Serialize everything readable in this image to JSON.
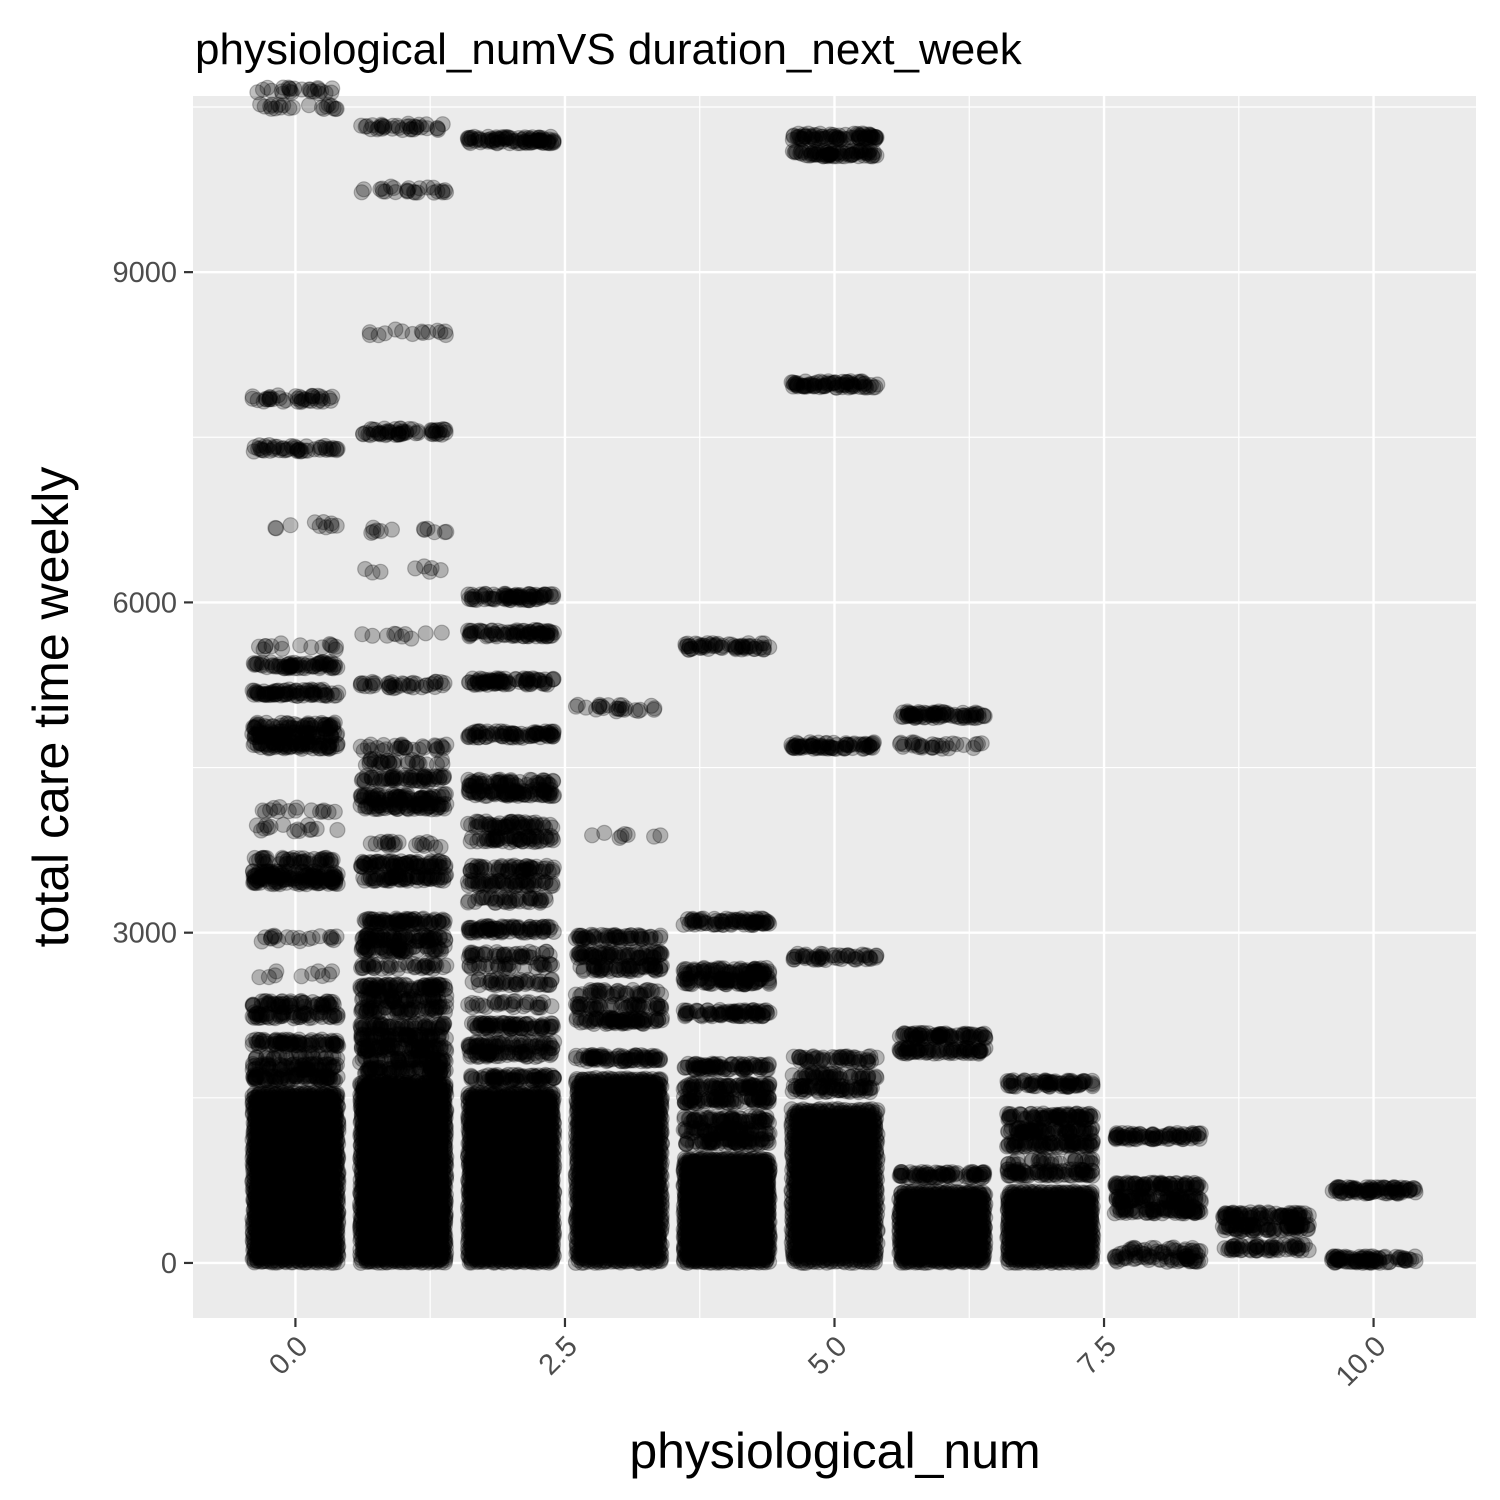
{
  "chart_data": {
    "type": "scatter",
    "title": "physiological_numVS duration_next_week",
    "xlabel": "physiological_num",
    "ylabel": "total care time weekly",
    "xlim": [
      -0.95,
      10.95
    ],
    "ylim": [
      -500,
      10600
    ],
    "x_ticks": [
      0,
      2.5,
      5,
      7.5,
      10
    ],
    "x_tick_labels": [
      "0.0",
      "2.5",
      "5.0",
      "7.5",
      "10.0"
    ],
    "y_ticks": [
      0,
      3000,
      6000,
      9000
    ],
    "y_tick_labels": [
      "0",
      "3000",
      "6000",
      "9000"
    ],
    "jitter_width": 0.4,
    "point_alpha": 0.25,
    "point_color": "#000000",
    "panel_color": "#ebebeb",
    "grid_color": "#ffffff",
    "grid": true,
    "legend": "none",
    "groups": [
      {
        "x": 0,
        "dense_max": 1550,
        "dense_n": 2500,
        "levels": [
          {
            "y": 1680,
            "n": 80
          },
          {
            "y": 1780,
            "n": 70
          },
          {
            "y": 1880,
            "n": 30
          },
          {
            "y": 2000,
            "n": 80
          },
          {
            "y": 2250,
            "n": 60
          },
          {
            "y": 2350,
            "n": 60
          },
          {
            "y": 2620,
            "n": 10
          },
          {
            "y": 2950,
            "n": 20
          },
          {
            "y": 3470,
            "n": 80
          },
          {
            "y": 3530,
            "n": 80
          },
          {
            "y": 3650,
            "n": 50
          },
          {
            "y": 3950,
            "n": 15
          },
          {
            "y": 4120,
            "n": 15
          },
          {
            "y": 4700,
            "n": 80
          },
          {
            "y": 4800,
            "n": 80
          },
          {
            "y": 4880,
            "n": 60
          },
          {
            "y": 5180,
            "n": 80
          },
          {
            "y": 5430,
            "n": 70
          },
          {
            "y": 5600,
            "n": 15
          },
          {
            "y": 6700,
            "n": 10
          },
          {
            "y": 7400,
            "n": 50
          },
          {
            "y": 7850,
            "n": 40
          },
          {
            "y": 10500,
            "n": 20
          },
          {
            "y": 10650,
            "n": 25
          }
        ]
      },
      {
        "x": 1,
        "dense_max": 1650,
        "dense_n": 2800,
        "levels": [
          {
            "y": 1750,
            "n": 80
          },
          {
            "y": 1850,
            "n": 60
          },
          {
            "y": 1950,
            "n": 80
          },
          {
            "y": 2050,
            "n": 70
          },
          {
            "y": 2150,
            "n": 60
          },
          {
            "y": 2300,
            "n": 60
          },
          {
            "y": 2400,
            "n": 60
          },
          {
            "y": 2500,
            "n": 80
          },
          {
            "y": 2700,
            "n": 40
          },
          {
            "y": 2850,
            "n": 60
          },
          {
            "y": 2950,
            "n": 80
          },
          {
            "y": 3100,
            "n": 80
          },
          {
            "y": 3500,
            "n": 70
          },
          {
            "y": 3620,
            "n": 80
          },
          {
            "y": 3800,
            "n": 20
          },
          {
            "y": 4150,
            "n": 70
          },
          {
            "y": 4230,
            "n": 70
          },
          {
            "y": 4400,
            "n": 60
          },
          {
            "y": 4550,
            "n": 30
          },
          {
            "y": 4680,
            "n": 30
          },
          {
            "y": 5250,
            "n": 40
          },
          {
            "y": 5700,
            "n": 10
          },
          {
            "y": 6300,
            "n": 8
          },
          {
            "y": 6650,
            "n": 12
          },
          {
            "y": 7550,
            "n": 60
          },
          {
            "y": 8450,
            "n": 14
          },
          {
            "y": 9750,
            "n": 25
          },
          {
            "y": 10320,
            "n": 35
          }
        ]
      },
      {
        "x": 2,
        "dense_max": 1550,
        "dense_n": 2500,
        "levels": [
          {
            "y": 1680,
            "n": 80
          },
          {
            "y": 1900,
            "n": 60
          },
          {
            "y": 1980,
            "n": 60
          },
          {
            "y": 2150,
            "n": 80
          },
          {
            "y": 2350,
            "n": 30
          },
          {
            "y": 2550,
            "n": 40
          },
          {
            "y": 2700,
            "n": 30
          },
          {
            "y": 2800,
            "n": 40
          },
          {
            "y": 3030,
            "n": 80
          },
          {
            "y": 3300,
            "n": 40
          },
          {
            "y": 3450,
            "n": 60
          },
          {
            "y": 3580,
            "n": 60
          },
          {
            "y": 3850,
            "n": 60
          },
          {
            "y": 3980,
            "n": 60
          },
          {
            "y": 4270,
            "n": 80
          },
          {
            "y": 4360,
            "n": 60
          },
          {
            "y": 4800,
            "n": 80
          },
          {
            "y": 5280,
            "n": 80
          },
          {
            "y": 5720,
            "n": 80
          },
          {
            "y": 6050,
            "n": 80
          },
          {
            "y": 10200,
            "n": 90
          }
        ]
      },
      {
        "x": 3,
        "dense_max": 1680,
        "dense_n": 2300,
        "levels": [
          {
            "y": 1860,
            "n": 80
          },
          {
            "y": 2200,
            "n": 80
          },
          {
            "y": 2330,
            "n": 50
          },
          {
            "y": 2450,
            "n": 40
          },
          {
            "y": 2680,
            "n": 60
          },
          {
            "y": 2800,
            "n": 70
          },
          {
            "y": 2950,
            "n": 60
          },
          {
            "y": 3880,
            "n": 8
          },
          {
            "y": 5040,
            "n": 25
          }
        ]
      },
      {
        "x": 4,
        "dense_max": 950,
        "dense_n": 1800,
        "levels": [
          {
            "y": 1100,
            "n": 70
          },
          {
            "y": 1200,
            "n": 70
          },
          {
            "y": 1300,
            "n": 70
          },
          {
            "y": 1480,
            "n": 80
          },
          {
            "y": 1600,
            "n": 80
          },
          {
            "y": 1780,
            "n": 80
          },
          {
            "y": 2270,
            "n": 80
          },
          {
            "y": 2560,
            "n": 80
          },
          {
            "y": 2650,
            "n": 80
          },
          {
            "y": 3100,
            "n": 80
          },
          {
            "y": 5600,
            "n": 60
          }
        ]
      },
      {
        "x": 5,
        "dense_max": 1400,
        "dense_n": 1600,
        "levels": [
          {
            "y": 1580,
            "n": 70
          },
          {
            "y": 1700,
            "n": 50
          },
          {
            "y": 1850,
            "n": 50
          },
          {
            "y": 2780,
            "n": 50
          },
          {
            "y": 4700,
            "n": 80
          },
          {
            "y": 7980,
            "n": 80
          },
          {
            "y": 10080,
            "n": 80
          },
          {
            "y": 10230,
            "n": 80
          }
        ]
      },
      {
        "x": 6,
        "dense_max": 650,
        "dense_n": 1100,
        "levels": [
          {
            "y": 800,
            "n": 80
          },
          {
            "y": 1930,
            "n": 80
          },
          {
            "y": 2060,
            "n": 80
          },
          {
            "y": 4700,
            "n": 30
          },
          {
            "y": 4980,
            "n": 80
          }
        ]
      },
      {
        "x": 7,
        "dense_max": 650,
        "dense_n": 1000,
        "levels": [
          {
            "y": 820,
            "n": 80
          },
          {
            "y": 920,
            "n": 30
          },
          {
            "y": 1080,
            "n": 80
          },
          {
            "y": 1200,
            "n": 80
          },
          {
            "y": 1330,
            "n": 80
          },
          {
            "y": 1630,
            "n": 80
          }
        ]
      },
      {
        "x": 8,
        "dense_max": 0,
        "dense_n": 0,
        "levels": [
          {
            "y": 40,
            "n": 50
          },
          {
            "y": 110,
            "n": 40
          },
          {
            "y": 480,
            "n": 80
          },
          {
            "y": 580,
            "n": 80
          },
          {
            "y": 700,
            "n": 80
          },
          {
            "y": 1150,
            "n": 80
          }
        ]
      },
      {
        "x": 9,
        "dense_max": 0,
        "dense_n": 0,
        "levels": [
          {
            "y": 140,
            "n": 60
          },
          {
            "y": 320,
            "n": 80
          },
          {
            "y": 430,
            "n": 80
          }
        ]
      },
      {
        "x": 10,
        "dense_max": 0,
        "dense_n": 0,
        "levels": [
          {
            "y": 30,
            "n": 90
          },
          {
            "y": 660,
            "n": 90
          }
        ]
      }
    ]
  }
}
